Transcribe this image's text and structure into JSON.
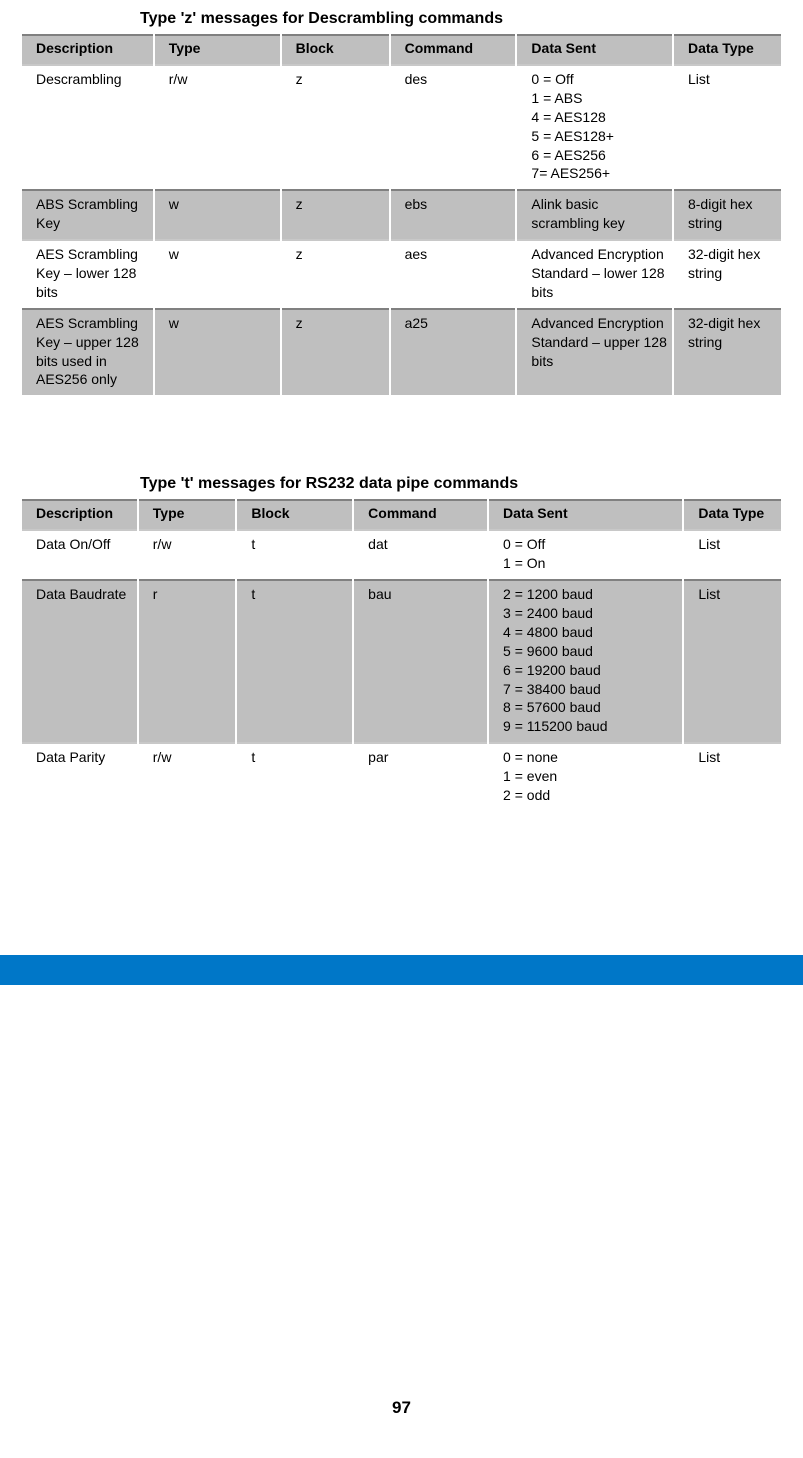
{
  "page_number": "97",
  "table1": {
    "caption": "Type 'z' messages for Descrambling commands",
    "columns": [
      "Description",
      "Type",
      "Block",
      "Command",
      "Data Sent",
      "Data Type"
    ],
    "rows": [
      {
        "desc": "Descrambling",
        "type": "r/w",
        "block": "z",
        "cmd": "des",
        "data": [
          "0 = Off",
          "1 = ABS",
          "4 = AES128",
          "5 = AES128+",
          "6 = AES256",
          "7= AES256+"
        ],
        "dtype": "List",
        "shade": "white"
      },
      {
        "desc": "ABS Scrambling Key",
        "type": "w",
        "block": "z",
        "cmd": "ebs",
        "data": [
          "Alink basic scrambling key"
        ],
        "dtype": "8-digit hex string",
        "shade": "grey"
      },
      {
        "desc": "AES Scrambling Key – lower 128 bits",
        "type": "w",
        "block": "z",
        "cmd": "aes",
        "data": [
          "Advanced Encryption Standard – lower 128 bits"
        ],
        "dtype": "32-digit hex string",
        "shade": "white"
      },
      {
        "desc": "AES Scrambling Key – upper 128 bits used in AES256 only",
        "type": "w",
        "block": "z",
        "cmd": "a25",
        "data": [
          "Advanced Encryption Standard – upper 128 bits"
        ],
        "dtype": "32-digit hex string",
        "shade": "grey"
      }
    ]
  },
  "table2": {
    "caption": "Type 't' messages for RS232 data pipe commands",
    "columns": [
      "Description",
      "Type",
      "Block",
      "Command",
      "Data Sent",
      "Data Type"
    ],
    "rows": [
      {
        "desc": "Data On/Off",
        "type": "r/w",
        "block": "t",
        "cmd": "dat",
        "data": [
          "0 = Off",
          "1 = On"
        ],
        "dtype": "List",
        "shade": "white"
      },
      {
        "desc": "Data Baudrate",
        "type": "r",
        "block": "t",
        "cmd": "bau",
        "data": [
          "2 = 1200 baud",
          "3 = 2400 baud",
          "4 = 4800 baud",
          "5 = 9600 baud",
          "6 = 19200 baud",
          "7 = 38400 baud",
          "8 = 57600 baud",
          "9 = 115200 baud"
        ],
        "dtype": "List",
        "shade": "grey"
      },
      {
        "desc": "Data Parity",
        "type": "r/w",
        "block": "t",
        "cmd": "par",
        "data": [
          "0 = none",
          "1 = even",
          "2 = odd"
        ],
        "dtype": "List",
        "shade": "white"
      }
    ]
  },
  "colors": {
    "header_bg": "#bfbfbf",
    "grey_row": "#bfbfbf",
    "blue_bar": "#0077c8",
    "border_dark": "#808080",
    "border_light": "#c8c8c8"
  }
}
